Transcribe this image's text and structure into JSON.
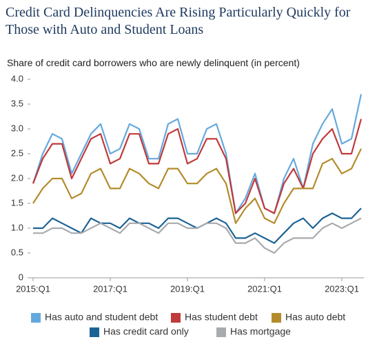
{
  "chart_data": {
    "type": "line",
    "title": "Credit Card Delinquencies Are Rising Particularly Quickly for Those with Auto and Student Loans",
    "subtitle": "Share of credit card borrowers who are newly delinquent (in percent)",
    "categories": [
      "2015:Q1",
      null,
      null,
      null,
      null,
      null,
      null,
      null,
      "2017:Q1",
      null,
      null,
      null,
      null,
      null,
      null,
      null,
      "2019:Q1",
      null,
      null,
      null,
      null,
      null,
      null,
      null,
      "2021:Q1",
      null,
      null,
      null,
      null,
      null,
      null,
      null,
      "2023:Q1",
      null,
      null
    ],
    "ylim": [
      0,
      4
    ],
    "yticks": [
      0,
      0.5,
      {
        "value": 1,
        "label": "1.0"
      },
      1.5,
      {
        "value": 2,
        "label": "2.0"
      },
      2.5,
      {
        "value": 3,
        "label": "3.0"
      },
      3.5,
      {
        "value": 4,
        "label": "4.0"
      }
    ],
    "grid": false,
    "legend": "bottom",
    "series": [
      {
        "name": "Has auto and student debt",
        "color": "#64a9dd",
        "values": [
          1.9,
          2.5,
          2.9,
          2.8,
          2.1,
          2.5,
          2.9,
          3.1,
          2.5,
          2.6,
          3.1,
          3.0,
          2.4,
          2.4,
          3.1,
          3.2,
          2.5,
          2.5,
          3.0,
          3.1,
          2.5,
          1.3,
          1.6,
          2.1,
          1.4,
          1.3,
          2.0,
          2.4,
          1.8,
          2.7,
          3.1,
          3.4,
          2.7,
          2.8,
          3.7
        ]
      },
      {
        "name": "Has student debt",
        "color": "#c0393b",
        "values": [
          1.9,
          2.4,
          2.7,
          2.7,
          2.0,
          2.4,
          2.8,
          2.9,
          2.3,
          2.4,
          2.9,
          2.9,
          2.3,
          2.3,
          2.9,
          3.0,
          2.3,
          2.4,
          2.8,
          2.8,
          2.4,
          1.3,
          1.5,
          2.0,
          1.4,
          1.3,
          1.9,
          2.2,
          1.8,
          2.5,
          2.8,
          3.0,
          2.5,
          2.5,
          3.2
        ]
      },
      {
        "name": "Has auto debt",
        "color": "#b38b2a",
        "values": [
          1.5,
          1.8,
          2.0,
          2.0,
          1.6,
          1.7,
          2.1,
          2.2,
          1.8,
          1.8,
          2.2,
          2.1,
          1.9,
          1.8,
          2.2,
          2.2,
          1.9,
          1.9,
          2.1,
          2.2,
          1.9,
          1.1,
          1.4,
          1.6,
          1.2,
          1.1,
          1.5,
          1.8,
          1.8,
          1.8,
          2.3,
          2.4,
          2.1,
          2.2,
          2.6
        ]
      },
      {
        "name": "Has credit card only",
        "color": "#1c6394",
        "values": [
          1.0,
          1.0,
          1.2,
          1.1,
          1.0,
          0.9,
          1.2,
          1.1,
          1.1,
          1.0,
          1.2,
          1.1,
          1.1,
          1.0,
          1.2,
          1.2,
          1.1,
          1.0,
          1.1,
          1.2,
          1.1,
          0.8,
          0.8,
          0.9,
          0.8,
          0.7,
          0.9,
          1.1,
          1.2,
          1.0,
          1.2,
          1.3,
          1.2,
          1.2,
          1.4
        ]
      },
      {
        "name": "Has mortgage",
        "color": "#a7aaae",
        "values": [
          0.9,
          0.9,
          1.0,
          1.0,
          0.9,
          0.9,
          1.0,
          1.1,
          1.0,
          0.9,
          1.1,
          1.1,
          1.0,
          0.9,
          1.1,
          1.1,
          1.0,
          1.0,
          1.1,
          1.1,
          1.0,
          0.7,
          0.7,
          0.8,
          0.6,
          0.5,
          0.7,
          0.8,
          0.8,
          0.8,
          1.0,
          1.1,
          1.0,
          1.1,
          1.2
        ]
      }
    ]
  }
}
